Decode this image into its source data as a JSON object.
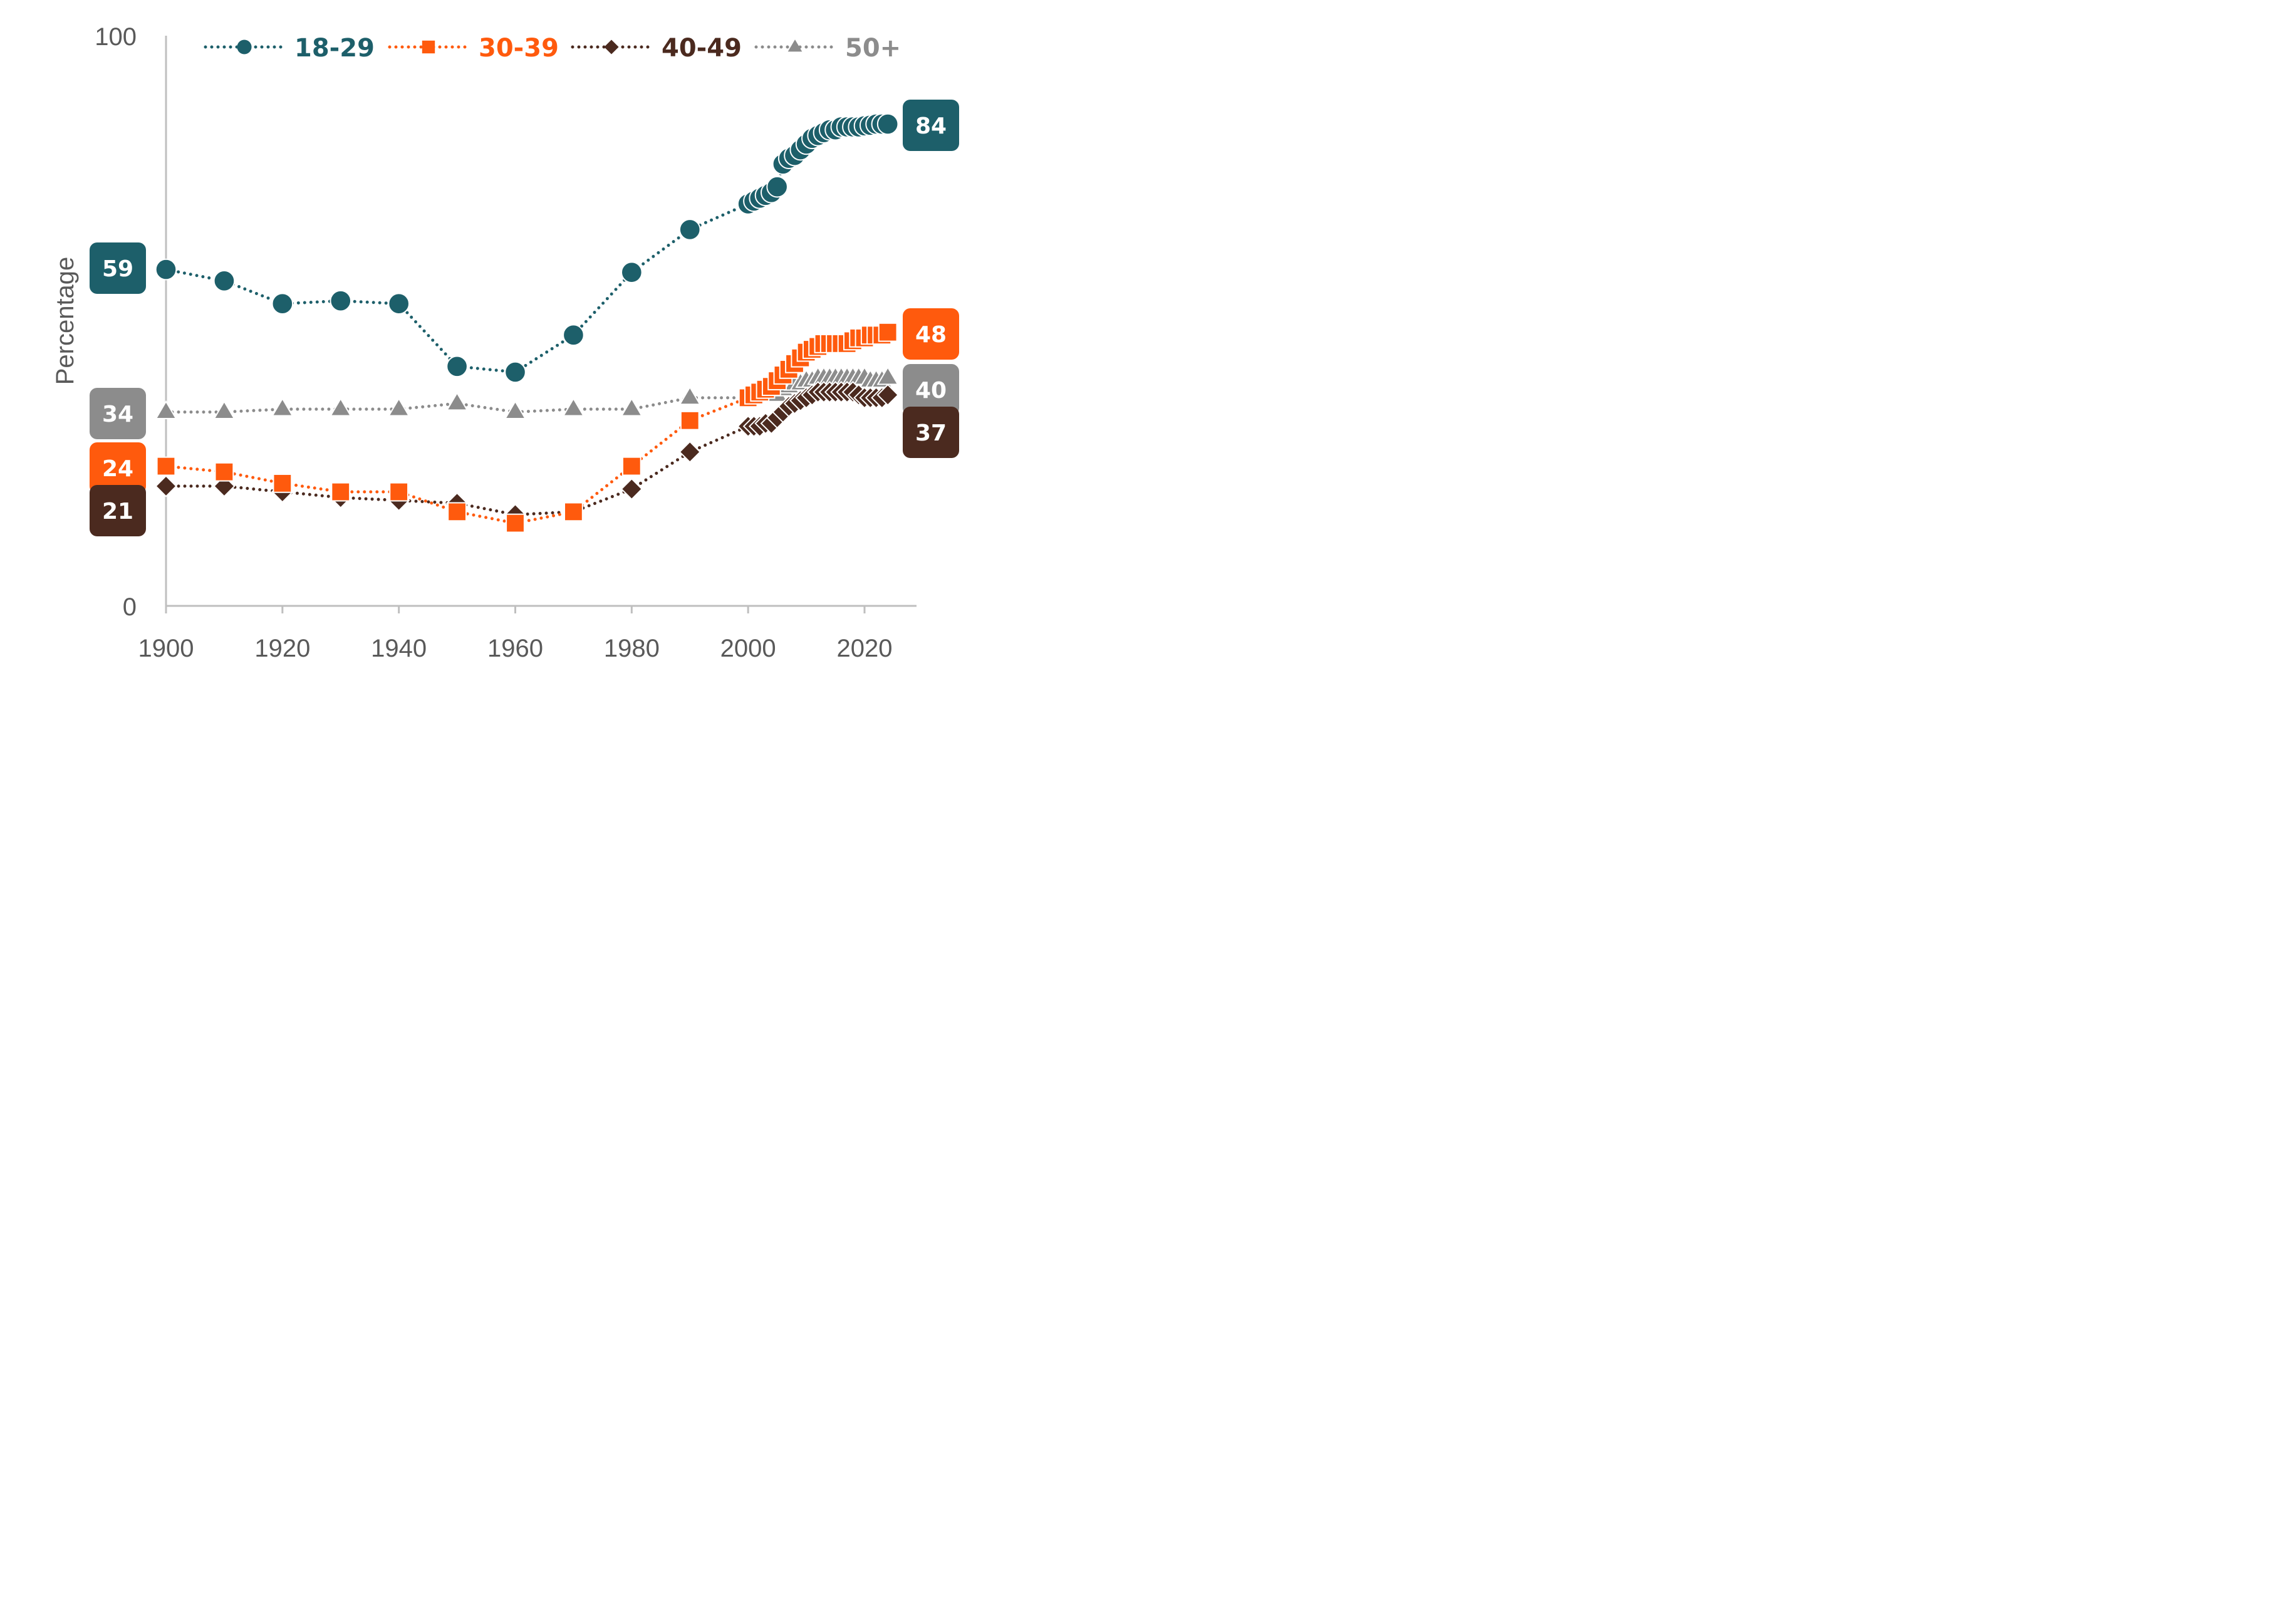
{
  "chart_data": {
    "type": "line",
    "ylabel": "Percentage",
    "xlabel": "",
    "ylim": [
      0,
      100
    ],
    "xlim": [
      1900,
      2030
    ],
    "y_ticks": [
      "0",
      "100"
    ],
    "x_ticks": [
      1900,
      1920,
      1940,
      1960,
      1980,
      2000,
      2020
    ],
    "grid": false,
    "legend_position": "top",
    "series": [
      {
        "name": "18-29",
        "color": "#1d5f6a",
        "marker": "circle",
        "start_label": "59",
        "end_label": "84",
        "x": [
          1900,
          1910,
          1920,
          1930,
          1940,
          1950,
          1960,
          1970,
          1980,
          1990,
          2000,
          2001,
          2002,
          2003,
          2004,
          2005,
          2006,
          2007,
          2008,
          2009,
          2010,
          2011,
          2012,
          2013,
          2014,
          2015,
          2016,
          2017,
          2018,
          2019,
          2020,
          2021,
          2022,
          2023,
          2024
        ],
        "values": [
          59.0,
          57.0,
          53.0,
          53.5,
          53.0,
          42.0,
          41.0,
          47.5,
          58.5,
          66.0,
          70.5,
          71.0,
          71.5,
          72.0,
          72.5,
          73.5,
          77.5,
          78.5,
          79.0,
          80.0,
          81.0,
          82.0,
          82.5,
          83.0,
          83.5,
          83.5,
          84.0,
          84.0,
          84.0,
          84.0,
          84.2,
          84.3,
          84.5,
          84.5,
          84.5
        ]
      },
      {
        "name": "30-39",
        "color": "#ff5a0d",
        "marker": "square",
        "start_label": "24",
        "end_label": "48",
        "x": [
          1900,
          1910,
          1920,
          1930,
          1940,
          1950,
          1960,
          1970,
          1980,
          1990,
          2000,
          2001,
          2002,
          2003,
          2004,
          2005,
          2006,
          2007,
          2008,
          2009,
          2010,
          2011,
          2012,
          2013,
          2014,
          2015,
          2016,
          2017,
          2018,
          2019,
          2020,
          2021,
          2022,
          2023,
          2024
        ],
        "values": [
          24.5,
          23.5,
          21.5,
          20.0,
          20.0,
          16.5,
          14.5,
          16.5,
          24.5,
          32.5,
          36.5,
          37.0,
          37.5,
          38.0,
          38.5,
          39.5,
          40.5,
          41.5,
          42.5,
          43.5,
          44.5,
          45.0,
          45.5,
          46.0,
          46.0,
          46.0,
          46.0,
          46.0,
          46.5,
          47.0,
          47.0,
          47.5,
          47.5,
          47.5,
          48.0
        ]
      },
      {
        "name": "40-49",
        "color": "#4b2a1f",
        "marker": "diamond",
        "start_label": "21",
        "end_label": "37",
        "x": [
          1900,
          1910,
          1920,
          1930,
          1940,
          1950,
          1960,
          1970,
          1980,
          1990,
          2000,
          2001,
          2002,
          2003,
          2004,
          2005,
          2006,
          2007,
          2008,
          2009,
          2010,
          2011,
          2012,
          2013,
          2014,
          2015,
          2016,
          2017,
          2018,
          2019,
          2020,
          2021,
          2022,
          2023,
          2024
        ],
        "values": [
          21.0,
          21.0,
          20.0,
          19.0,
          18.5,
          18.0,
          16.0,
          16.5,
          20.5,
          27.0,
          31.5,
          31.5,
          31.5,
          32.0,
          32.0,
          33.0,
          34.0,
          35.0,
          35.5,
          36.0,
          36.5,
          37.0,
          37.5,
          37.5,
          37.5,
          37.5,
          37.5,
          37.5,
          37.5,
          37.0,
          36.5,
          36.5,
          36.5,
          36.5,
          37.0
        ]
      },
      {
        "name": "50+",
        "color": "#8c8c8c",
        "marker": "triangle",
        "start_label": "34",
        "end_label": "40",
        "x": [
          1900,
          1910,
          1920,
          1930,
          1940,
          1950,
          1960,
          1970,
          1980,
          1990,
          2000,
          2001,
          2002,
          2003,
          2004,
          2005,
          2006,
          2007,
          2008,
          2009,
          2010,
          2011,
          2012,
          2013,
          2014,
          2015,
          2016,
          2017,
          2018,
          2019,
          2020,
          2021,
          2022,
          2023,
          2024
        ],
        "values": [
          34.0,
          34.0,
          34.5,
          34.5,
          34.5,
          35.5,
          34.0,
          34.5,
          34.5,
          36.5,
          36.5,
          36.5,
          37.0,
          37.0,
          37.0,
          37.0,
          38.0,
          38.5,
          39.0,
          39.0,
          39.5,
          39.5,
          40.0,
          40.0,
          40.0,
          40.0,
          40.0,
          40.0,
          40.0,
          40.0,
          40.0,
          39.5,
          39.5,
          39.5,
          40.0
        ]
      }
    ]
  }
}
